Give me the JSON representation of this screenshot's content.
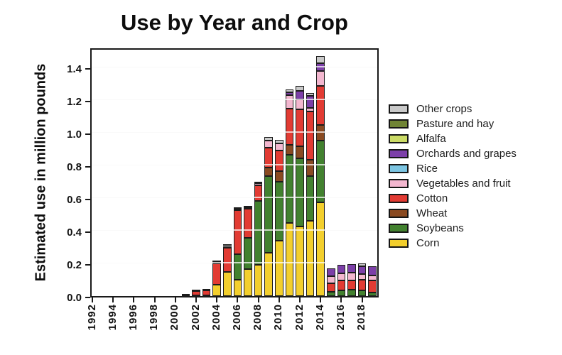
{
  "title": "Use by Year and Crop",
  "ylabel": "Estimated use in million pounds",
  "legend": {
    "position": "right",
    "items": [
      "Other crops",
      "Pasture and hay",
      "Alfalfa",
      "Orchards and grapes",
      "Rice",
      "Vegetables and fruit",
      "Cotton",
      "Wheat",
      "Soybeans",
      "Corn"
    ]
  },
  "chart_data": {
    "type": "bar",
    "stacked": true,
    "title": "Use by Year and Crop",
    "xlabel": "",
    "ylabel": "Estimated use in million pounds",
    "x": [
      1992,
      1993,
      1994,
      1995,
      1996,
      1997,
      1998,
      1999,
      2000,
      2001,
      2002,
      2003,
      2004,
      2005,
      2006,
      2007,
      2008,
      2009,
      2010,
      2011,
      2012,
      2013,
      2014,
      2015,
      2016,
      2017,
      2018,
      2019
    ],
    "xtick_labels": [
      "1992",
      "1994",
      "1996",
      "1998",
      "2000",
      "2002",
      "2004",
      "2006",
      "2008",
      "2010",
      "2012",
      "2014",
      "2016",
      "2018"
    ],
    "ytick_labels": [
      "0.0",
      "0.2",
      "0.4",
      "0.6",
      "0.8",
      "1.0",
      "1.2",
      "1.4"
    ],
    "ylim": [
      0,
      1.5
    ],
    "grid": "horizontal white lines every 0.2 drawn over bars",
    "legend_position": "right",
    "series_order_note": "bottom-to-top stack order",
    "series": [
      {
        "name": "Corn",
        "color": "#f3cf2d",
        "values": [
          0,
          0,
          0,
          0,
          0,
          0,
          0,
          0,
          0,
          0.002,
          0.004,
          0.006,
          0.07,
          0.15,
          0.1,
          0.165,
          0.19,
          0.266,
          0.34,
          0.45,
          0.425,
          0.46,
          0.575,
          0,
          0,
          0,
          0,
          0
        ]
      },
      {
        "name": "Soybeans",
        "color": "#42812f",
        "values": [
          0,
          0,
          0,
          0,
          0,
          0,
          0,
          0,
          0,
          0.002,
          0,
          0,
          0,
          0,
          0.155,
          0.19,
          0.395,
          0.471,
          0.363,
          0.418,
          0.421,
          0.274,
          0.38,
          0.026,
          0.033,
          0.04,
          0.035,
          0.023
        ]
      },
      {
        "name": "Wheat",
        "color": "#8a4a21",
        "values": [
          0,
          0,
          0,
          0,
          0,
          0,
          0,
          0,
          0,
          0,
          0,
          0,
          0,
          0,
          0,
          0,
          0,
          0.051,
          0.063,
          0.058,
          0.072,
          0.1,
          0.094,
          0,
          0,
          0,
          0,
          0
        ]
      },
      {
        "name": "Cotton",
        "color": "#e23b33",
        "values": [
          0,
          0,
          0,
          0,
          0,
          0,
          0,
          0,
          0,
          0.002,
          0.026,
          0.028,
          0.13,
          0.145,
          0.27,
          0.18,
          0.095,
          0.123,
          0.126,
          0.225,
          0.225,
          0.3,
          0.24,
          0.051,
          0.063,
          0.058,
          0.065,
          0.073
        ]
      },
      {
        "name": "Vegetables and fruit",
        "color": "#f3b7cf",
        "values": [
          0,
          0,
          0,
          0,
          0,
          0,
          0,
          0,
          0,
          0,
          0.006,
          0.006,
          0.01,
          0.012,
          0.012,
          0.011,
          0.013,
          0.044,
          0.042,
          0.079,
          0.065,
          0.021,
          0.092,
          0.043,
          0.043,
          0.047,
          0.034,
          0.032
        ]
      },
      {
        "name": "Rice",
        "color": "#7cc5e2",
        "values": [
          0,
          0,
          0,
          0,
          0,
          0,
          0,
          0,
          0,
          0,
          0,
          0,
          0,
          0,
          0,
          0,
          0,
          0,
          0,
          0,
          0,
          0,
          0,
          0,
          0,
          0,
          0,
          0
        ]
      },
      {
        "name": "Orchards and grapes",
        "color": "#7c3fa8",
        "values": [
          0,
          0,
          0,
          0,
          0,
          0,
          0,
          0,
          0,
          0,
          0,
          0,
          0,
          0,
          0,
          0,
          0,
          0,
          0,
          0.02,
          0.051,
          0.072,
          0.049,
          0.051,
          0.054,
          0.052,
          0.051,
          0.055
        ]
      },
      {
        "name": "Alfalfa",
        "color": "#cbdb66",
        "values": [
          0,
          0,
          0,
          0,
          0,
          0,
          0,
          0,
          0,
          0,
          0,
          0,
          0,
          0,
          0,
          0,
          0,
          0,
          0,
          0,
          0,
          0,
          0,
          0,
          0,
          0,
          0,
          0
        ]
      },
      {
        "name": "Pasture and hay",
        "color": "#708434",
        "values": [
          0,
          0,
          0,
          0,
          0,
          0,
          0,
          0,
          0,
          0,
          0,
          0,
          0,
          0,
          0,
          0,
          0,
          0,
          0,
          0,
          0,
          0,
          0,
          0,
          0,
          0,
          0,
          0
        ]
      },
      {
        "name": "Other crops",
        "color": "#c9c9c9",
        "values": [
          0,
          0,
          0,
          0,
          0,
          0,
          0,
          0,
          0,
          0,
          0,
          0,
          0.005,
          0.006,
          0.004,
          0.003,
          0.003,
          0.021,
          0.025,
          0.015,
          0.029,
          0.019,
          0.041,
          0,
          0,
          0,
          0.015,
          0
        ]
      }
    ]
  }
}
